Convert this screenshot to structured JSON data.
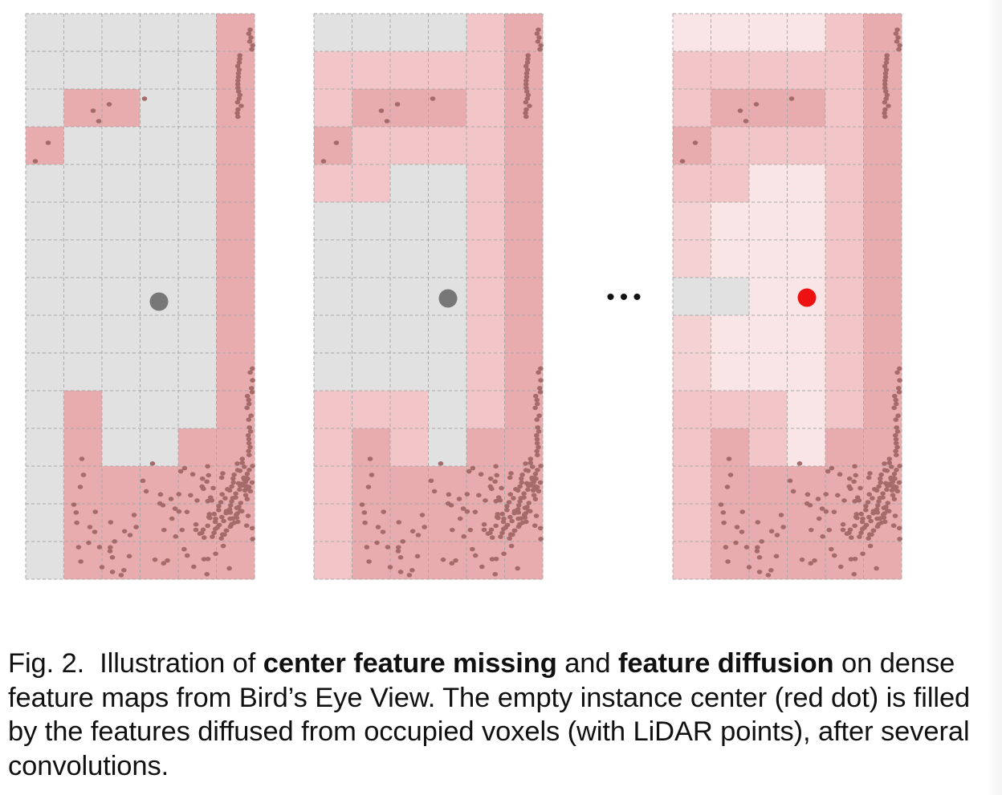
{
  "colors": {
    "empty": "#e1e1e1",
    "occupied": "#e8acae",
    "diffused_1": "#f2c6c8",
    "diffused_2": "#f4d2d3",
    "diffused_3": "#f9e5e5",
    "point": "#a56a6a",
    "grey_center": "#777777",
    "red_center": "#ee1111",
    "grid": "#a9a9a9"
  },
  "figure": {
    "ellipsis": "•••",
    "panels": [
      {
        "name": "initial-feature-map",
        "center_color": "grey_center",
        "grid_shading": [
          "EEEEEO",
          "EEEEEO",
          "EOOEEO",
          "OEEEEO",
          "EEEEEO",
          "EEEEEO",
          "EEEEEO",
          "EEEEEO",
          "EEEEEO",
          "EEEEEO",
          "EOEEEO",
          "EOEEOO",
          "EOOOOO",
          "EOOOOO",
          "EOOOOO"
        ]
      },
      {
        "name": "diffused-feature-map",
        "center_color": "grey_center",
        "grid_shading": [
          "EEEEFO",
          "FFFFFO",
          "FOOOFO",
          "OFFFFO",
          "FFEEFO",
          "EEEEFO",
          "EEEEFO",
          "EEEEFO",
          "EEEEFO",
          "EEEEFO",
          "FFFEFO",
          "FOFEOO",
          "FOOOOO",
          "FOOOOO",
          "FOOOOO"
        ]
      },
      {
        "name": "final-feature-map",
        "center_color": "red_center",
        "grid_shading": [
          "WWWWFO",
          "FFFFFO",
          "FOOOFO",
          "OFFFFO",
          "FFWWFO",
          "GWWWFO",
          "GWWWFO",
          "EEWWFO",
          "GWWWFO",
          "GWWWFO",
          "FFFWFO",
          "FOFWOO",
          "FOOOOO",
          "FOOOOO",
          "FOOOOO"
        ]
      }
    ]
  },
  "caption": {
    "label": "Fig. 2.",
    "lead": "Illustration of",
    "term_1": "center feature missing",
    "and": "and",
    "term_2": "feature diffusion",
    "body": "on dense feature maps from Bird’s Eye View. The empty instance center (red dot) is filled by the features diffused from occupied voxels (with LiDAR points), after several convolutions."
  }
}
